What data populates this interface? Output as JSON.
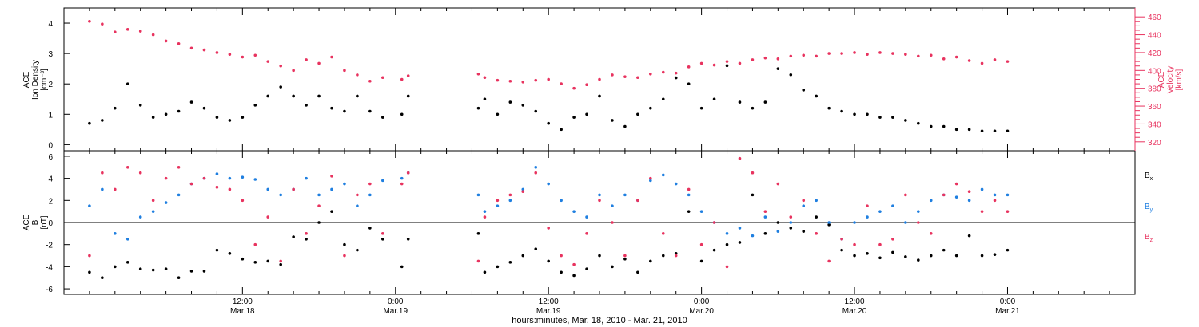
{
  "chart_data": [
    {
      "type": "scatter",
      "panel": "top",
      "left_axis": {
        "label_lines": [
          "ACE",
          "Ion Density",
          "[cm⁻³]"
        ],
        "ylim": [
          -0.2,
          4.5
        ],
        "ticks": [
          "0",
          "1",
          "2",
          "3",
          "4"
        ]
      },
      "right_axis": {
        "label_lines": [
          "ACE",
          "Velocity",
          "[km/s]"
        ],
        "ylim": [
          310,
          470
        ],
        "ticks": [
          "320",
          "340",
          "360",
          "380",
          "400",
          "420",
          "440",
          "460"
        ],
        "color": "#e8335f"
      },
      "series": [
        {
          "color": "#000000",
          "axis": "left",
          "x": [
            0,
            1,
            2,
            3,
            4,
            5,
            6,
            7,
            8,
            9,
            10,
            11,
            12,
            13,
            14,
            15,
            16,
            17,
            18,
            19,
            20,
            21,
            22,
            23,
            24.5,
            25,
            30.5,
            31,
            32,
            33,
            34,
            35,
            36,
            37,
            38,
            39,
            40,
            41,
            42,
            43,
            44,
            45,
            46,
            47,
            48,
            49,
            50,
            51,
            52,
            53,
            54,
            55,
            56,
            57,
            58,
            59,
            60,
            61,
            62,
            63,
            64,
            65,
            66,
            67,
            68,
            69,
            70,
            71,
            72
          ],
          "y": [
            0.7,
            0.8,
            1.2,
            2.0,
            1.3,
            0.9,
            1.0,
            1.1,
            1.4,
            1.2,
            0.9,
            0.8,
            0.9,
            1.3,
            1.6,
            1.9,
            1.6,
            1.3,
            1.6,
            1.2,
            1.1,
            1.6,
            1.1,
            0.9,
            1.0,
            1.6,
            1.2,
            1.5,
            1.0,
            1.4,
            1.3,
            1.1,
            0.7,
            0.5,
            0.9,
            1.0,
            1.6,
            0.8,
            0.6,
            1.0,
            1.2,
            1.5,
            2.2,
            2.0,
            1.2,
            1.5,
            2.6,
            1.4,
            1.2,
            1.4,
            2.5,
            2.3,
            1.8,
            1.6,
            1.2,
            1.1,
            1.0,
            1.0,
            0.9,
            0.9,
            0.8,
            0.7,
            0.6,
            0.6,
            0.5,
            0.5,
            0.45,
            0.45,
            0.45
          ]
        },
        {
          "color": "#e8335f",
          "axis": "right",
          "x": [
            0,
            1,
            2,
            3,
            4,
            5,
            6,
            7,
            8,
            9,
            10,
            11,
            12,
            13,
            14,
            15,
            16,
            17,
            18,
            19,
            20,
            21,
            22,
            23,
            24.5,
            25,
            30.5,
            31,
            32,
            33,
            34,
            35,
            36,
            37,
            38,
            39,
            40,
            41,
            42,
            43,
            44,
            45,
            46,
            47,
            48,
            49,
            50,
            51,
            52,
            53,
            54,
            55,
            56,
            57,
            58,
            59,
            60,
            61,
            62,
            63,
            64,
            65,
            66,
            67,
            68,
            69,
            70,
            71,
            72
          ],
          "y": [
            455,
            452,
            443,
            446,
            444,
            440,
            433,
            430,
            425,
            423,
            420,
            418,
            415,
            417,
            410,
            405,
            400,
            412,
            408,
            415,
            400,
            395,
            388,
            392,
            390,
            394,
            396,
            392,
            389,
            388,
            387,
            389,
            390,
            385,
            380,
            384,
            390,
            395,
            393,
            392,
            396,
            398,
            397,
            404,
            408,
            406,
            410,
            408,
            412,
            414,
            413,
            416,
            417,
            416,
            419,
            419,
            420,
            418,
            420,
            419,
            418,
            416,
            417,
            413,
            415,
            411,
            408,
            412,
            410
          ]
        }
      ]
    },
    {
      "type": "scatter",
      "panel": "bottom",
      "left_axis": {
        "label_lines": [
          "ACE",
          "B",
          "[nT]"
        ],
        "ylim": [
          -6.5,
          6.5
        ],
        "ticks": [
          "-6",
          "-4",
          "-2",
          "0",
          "2",
          "4",
          "6"
        ]
      },
      "legend": {
        "items": [
          {
            "name": "B",
            "sub": "x",
            "color": "#000000"
          },
          {
            "name": "B",
            "sub": "y",
            "color": "#1f7fe0"
          },
          {
            "name": "B",
            "sub": "z",
            "color": "#e8335f"
          }
        ],
        "placement": "right"
      },
      "series": [
        {
          "name": "Bx",
          "color": "#000000",
          "x": [
            0,
            1,
            2,
            3,
            4,
            5,
            6,
            7,
            8,
            9,
            10,
            11,
            12,
            13,
            14,
            15,
            16,
            17,
            18,
            19,
            20,
            21,
            22,
            23,
            24.5,
            25,
            30.5,
            31,
            32,
            33,
            34,
            35,
            36,
            37,
            38,
            39,
            40,
            41,
            42,
            43,
            44,
            45,
            46,
            47,
            48,
            49,
            50,
            51,
            52,
            53,
            54,
            55,
            56,
            57,
            58,
            59,
            60,
            61,
            62,
            63,
            64,
            65,
            66,
            67,
            68,
            69,
            70,
            71,
            72
          ],
          "y": [
            -4.5,
            -5.0,
            -4.0,
            -3.6,
            -4.2,
            -4.3,
            -4.2,
            -5.0,
            -4.4,
            -4.4,
            -2.5,
            -2.8,
            -3.3,
            -3.6,
            -3.5,
            -3.8,
            -1.3,
            -1.5,
            0.0,
            1.0,
            -2.0,
            -2.5,
            -0.5,
            -1.5,
            -4.0,
            -1.5,
            -1.0,
            -4.5,
            -4.0,
            -3.6,
            -3.0,
            -2.4,
            -3.5,
            -4.5,
            -4.8,
            -4.2,
            -3.0,
            -4.0,
            -3.3,
            -4.5,
            -3.5,
            -3.0,
            -2.8,
            1.0,
            -3.5,
            -2.5,
            -2.0,
            -1.8,
            2.5,
            -1.0,
            0.0,
            -0.5,
            -0.8,
            0.5,
            -0.2,
            -2.5,
            -3.0,
            -2.8,
            -3.2,
            -2.7,
            -3.1,
            -3.4,
            -3.0,
            -2.5,
            -3.0,
            -1.2,
            -3.0,
            -2.9,
            -2.5
          ]
        },
        {
          "name": "By",
          "color": "#1f7fe0",
          "x": [
            0,
            1,
            2,
            3,
            4,
            5,
            6,
            7,
            8,
            9,
            10,
            11,
            12,
            13,
            14,
            15,
            16,
            17,
            18,
            19,
            20,
            21,
            22,
            23,
            24.5,
            25,
            30.5,
            31,
            32,
            33,
            34,
            35,
            36,
            37,
            38,
            39,
            40,
            41,
            42,
            43,
            44,
            45,
            46,
            47,
            48,
            49,
            50,
            51,
            52,
            53,
            54,
            55,
            56,
            57,
            58,
            59,
            60,
            61,
            62,
            63,
            64,
            65,
            66,
            67,
            68,
            69,
            70,
            71,
            72
          ],
          "y": [
            1.5,
            3.0,
            -1.0,
            -1.5,
            0.5,
            1.0,
            1.8,
            2.5,
            3.5,
            4.0,
            4.4,
            4.0,
            4.1,
            3.9,
            3.0,
            2.5,
            3.0,
            4.0,
            2.5,
            3.0,
            3.5,
            1.5,
            2.5,
            3.8,
            4.0,
            4.5,
            2.5,
            1.0,
            1.5,
            2.0,
            3.0,
            5.0,
            3.5,
            2.0,
            1.0,
            0.5,
            2.5,
            1.5,
            2.5,
            2.0,
            3.8,
            4.3,
            3.5,
            2.5,
            1.0,
            0.0,
            -1.0,
            -0.5,
            -1.2,
            0.5,
            -0.8,
            0.0,
            1.5,
            2.0,
            0.0,
            -1.5,
            0.0,
            0.5,
            1.0,
            1.5,
            0.0,
            1.0,
            2.0,
            2.5,
            2.3,
            2.0,
            3.0,
            2.5,
            2.5
          ]
        },
        {
          "name": "Bz",
          "color": "#e8335f",
          "x": [
            0,
            1,
            2,
            3,
            4,
            5,
            6,
            7,
            8,
            9,
            10,
            11,
            12,
            13,
            14,
            15,
            16,
            17,
            18,
            19,
            20,
            21,
            22,
            23,
            24.5,
            25,
            30.5,
            31,
            32,
            33,
            34,
            35,
            36,
            37,
            38,
            39,
            40,
            41,
            42,
            43,
            44,
            45,
            46,
            47,
            48,
            49,
            50,
            51,
            52,
            53,
            54,
            55,
            56,
            57,
            58,
            59,
            60,
            61,
            62,
            63,
            64,
            65,
            66,
            67,
            68,
            69,
            70,
            71,
            72
          ],
          "y": [
            -3.0,
            4.5,
            3.0,
            5.0,
            4.5,
            2.0,
            4.0,
            5.0,
            3.5,
            4.0,
            3.2,
            3.0,
            2.0,
            -2.0,
            0.5,
            -3.5,
            3.0,
            -1.0,
            1.5,
            4.2,
            -3.0,
            2.5,
            3.5,
            -1.0,
            3.5,
            4.5,
            -3.5,
            0.5,
            2.0,
            2.5,
            2.8,
            4.5,
            -0.5,
            -3.0,
            -3.8,
            -1.0,
            2.0,
            0.0,
            -3.0,
            2.0,
            4.0,
            -1.0,
            -3.0,
            3.0,
            -2.0,
            0.0,
            -4.0,
            5.8,
            4.5,
            1.0,
            3.5,
            0.5,
            2.0,
            -1.0,
            -3.5,
            -1.5,
            -2.0,
            1.5,
            -2.0,
            -1.5,
            2.5,
            0.0,
            -1.0,
            2.5,
            3.5,
            2.8,
            1.0,
            2.0,
            1.0
          ]
        }
      ]
    }
  ],
  "x_axis": {
    "xlim": [
      -2,
      82
    ],
    "major_ticks": [
      {
        "x": 12,
        "time": "12:00",
        "date": "Mar.18"
      },
      {
        "x": 24,
        "time": "0:00",
        "date": "Mar.19"
      },
      {
        "x": 36,
        "time": "12:00",
        "date": "Mar.19"
      },
      {
        "x": 48,
        "time": "0:00",
        "date": "Mar.20"
      },
      {
        "x": 60,
        "time": "12:00",
        "date": "Mar.20"
      },
      {
        "x": 72,
        "time": "0:00",
        "date": "Mar.21"
      }
    ],
    "label": "hours:minutes, Mar. 18, 2010 - Mar. 21, 2010"
  }
}
